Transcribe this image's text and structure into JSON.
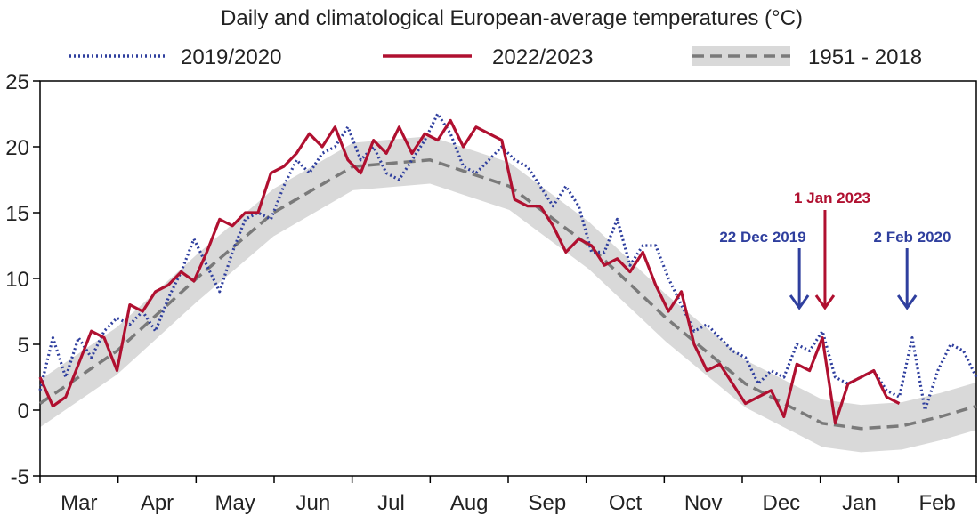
{
  "chart_data": {
    "type": "line",
    "title": "Daily and climatological European-average temperatures (°C)",
    "xlabel": "",
    "ylabel": "",
    "ylim": [
      -5,
      25
    ],
    "yticks": [
      -5,
      0,
      5,
      10,
      15,
      20,
      25
    ],
    "x_unit": "days from 1 Mar",
    "x_range": [
      0,
      365
    ],
    "months": [
      "Mar",
      "Apr",
      "May",
      "Jun",
      "Jul",
      "Aug",
      "Sep",
      "Oct",
      "Nov",
      "Dec",
      "Jan",
      "Feb"
    ],
    "legend": {
      "placement": "top",
      "entries": [
        "2019/2020",
        "2022/2023",
        "1951 - 2018"
      ]
    },
    "series": [
      {
        "name": "2019/2020",
        "style": "dotted",
        "color": "#2f3f9e",
        "x": [
          0,
          5,
          10,
          15,
          20,
          25,
          30,
          35,
          40,
          45,
          50,
          55,
          60,
          65,
          70,
          75,
          80,
          85,
          90,
          95,
          100,
          105,
          110,
          115,
          120,
          125,
          130,
          135,
          140,
          145,
          150,
          155,
          160,
          165,
          170,
          175,
          180,
          185,
          190,
          195,
          200,
          205,
          210,
          215,
          220,
          225,
          230,
          235,
          240,
          245,
          250,
          255,
          260,
          265,
          270,
          275,
          280,
          285,
          290,
          295,
          300,
          305,
          310,
          315,
          320,
          325,
          330,
          335,
          340,
          345,
          350,
          355,
          360,
          365
        ],
        "y": [
          1.5,
          5.5,
          2.5,
          5.5,
          4.0,
          6.0,
          7.0,
          6.5,
          7.5,
          6.0,
          8.5,
          10.5,
          13.0,
          11.0,
          9.0,
          12.0,
          14.5,
          15.0,
          14.5,
          17.0,
          19.0,
          18.0,
          19.5,
          20.0,
          21.5,
          19.0,
          20.0,
          18.0,
          17.5,
          19.0,
          20.5,
          22.5,
          21.0,
          18.5,
          18.0,
          19.0,
          20.0,
          19.0,
          18.5,
          17.0,
          15.5,
          17.0,
          15.5,
          12.0,
          12.0,
          14.5,
          11.0,
          12.5,
          12.5,
          10.0,
          8.0,
          6.0,
          6.5,
          5.5,
          4.5,
          4.0,
          2.0,
          3.0,
          2.5,
          5.0,
          4.5,
          6.0,
          2.5,
          2.0,
          2.5,
          3.0,
          1.5,
          1.0,
          5.5,
          0.0,
          3.0,
          5.0,
          4.5,
          2.5
        ]
      },
      {
        "name": "2022/2023",
        "style": "solid",
        "color": "#b01030",
        "x": [
          0,
          5,
          10,
          15,
          20,
          25,
          30,
          35,
          40,
          45,
          50,
          55,
          60,
          65,
          70,
          75,
          80,
          85,
          90,
          95,
          100,
          105,
          110,
          115,
          120,
          125,
          130,
          135,
          140,
          145,
          150,
          155,
          160,
          165,
          170,
          175,
          180,
          185,
          190,
          195,
          200,
          205,
          210,
          215,
          220,
          225,
          230,
          235,
          240,
          245,
          250,
          255,
          260,
          265,
          270,
          275,
          280,
          285,
          290,
          295,
          300,
          305,
          310,
          315,
          320,
          325,
          330,
          335
        ],
        "y": [
          2.5,
          0.3,
          1.0,
          3.5,
          6.0,
          5.5,
          3.0,
          8.0,
          7.5,
          9.0,
          9.5,
          10.5,
          9.8,
          12.0,
          14.5,
          14.0,
          15.0,
          15.0,
          18.0,
          18.5,
          19.5,
          21.0,
          20.0,
          21.5,
          19.0,
          18.0,
          20.5,
          19.5,
          21.5,
          19.5,
          21.0,
          20.5,
          22.0,
          20.0,
          21.5,
          21.0,
          20.5,
          16.0,
          15.5,
          15.5,
          14.0,
          12.0,
          13.0,
          12.5,
          11.0,
          11.5,
          10.5,
          12.0,
          9.5,
          7.5,
          9.0,
          5.0,
          3.0,
          3.5,
          2.0,
          0.5,
          1.0,
          1.5,
          -0.5,
          3.5,
          3.0,
          5.5,
          -1.0,
          2.0,
          2.5,
          3.0,
          1.0,
          0.5
        ]
      },
      {
        "name": "1951 - 2018",
        "style": "dashed",
        "color": "#7a7a7a",
        "band_color": "#d9d9d9",
        "band_halfwidth": 1.8,
        "x": [
          0,
          30,
          61,
          91,
          122,
          152,
          183,
          214,
          244,
          275,
          305,
          320,
          336,
          351,
          365
        ],
        "y": [
          0.5,
          4.5,
          10.0,
          15.0,
          18.5,
          19.0,
          17.0,
          12.5,
          7.0,
          2.0,
          -1.0,
          -1.4,
          -1.2,
          -0.5,
          0.3
        ]
      }
    ],
    "annotations": [
      {
        "text": "22 Dec 2019",
        "color": "#2f3f9e",
        "x": 296
      },
      {
        "text": "1 Jan 2023",
        "color": "#b01030",
        "x": 306
      },
      {
        "text": "2 Feb 2020",
        "color": "#2f3f9e",
        "x": 338
      }
    ]
  }
}
